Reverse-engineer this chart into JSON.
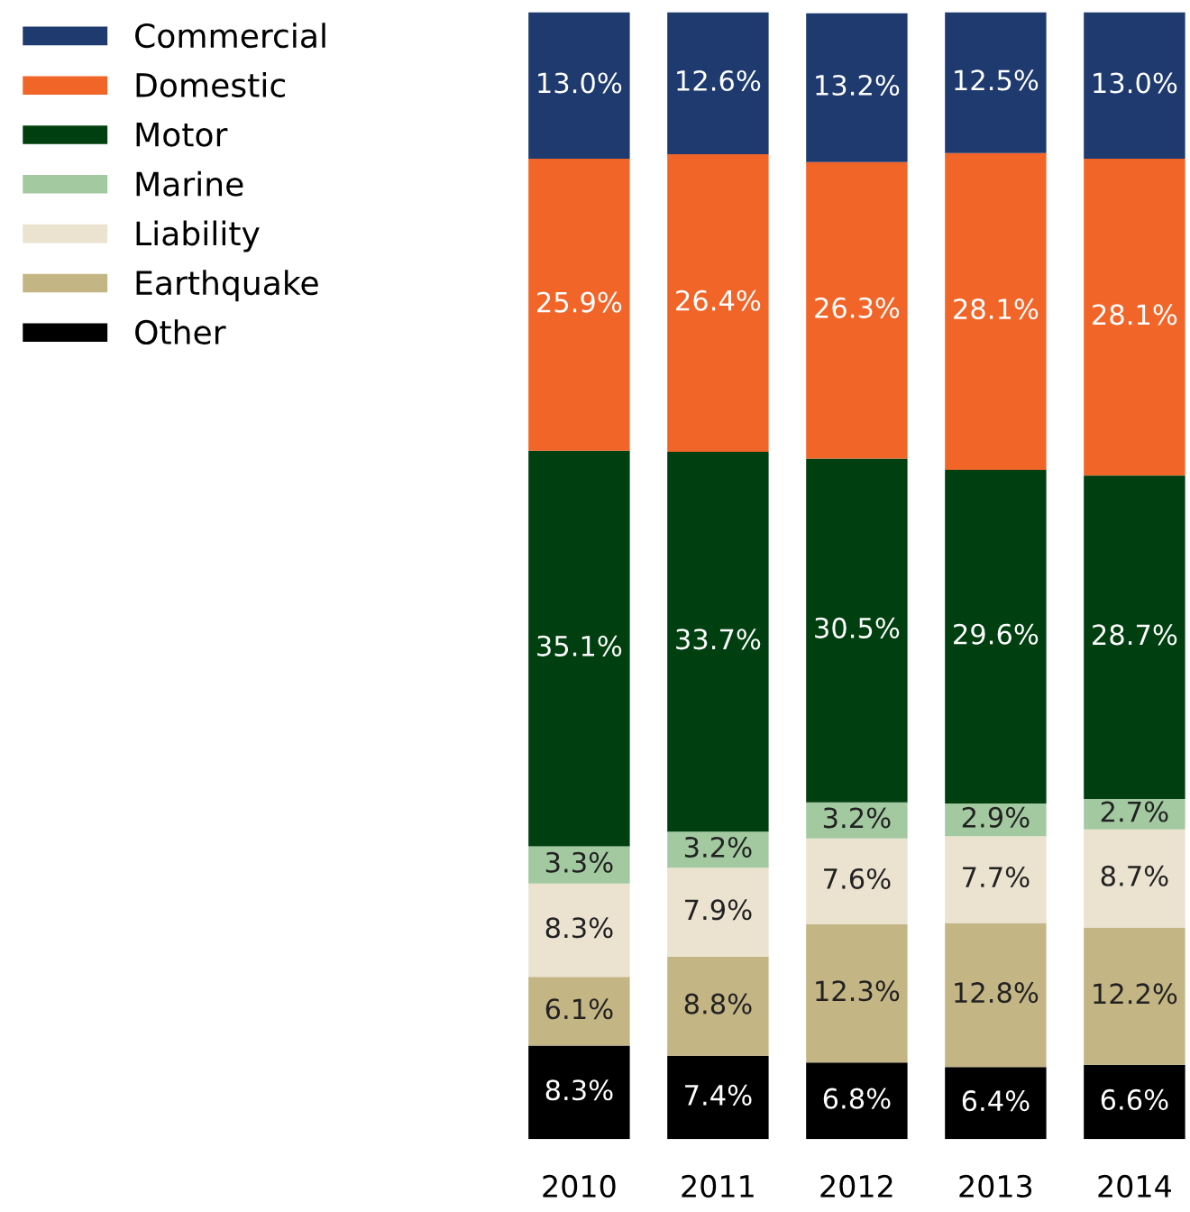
{
  "chart_data": {
    "type": "bar",
    "stacked": true,
    "legend": "left",
    "data_labels": true,
    "categories": [
      "2010",
      "2011",
      "2012",
      "2013",
      "2014"
    ],
    "series": [
      {
        "name": "Other",
        "color": "#000000",
        "values": [
          8.3,
          7.4,
          6.8,
          6.4,
          6.6
        ],
        "value_labels": [
          "8.3%",
          "7.4%",
          "6.8%",
          "6.4%",
          "6.6%"
        ]
      },
      {
        "name": "Earthquake",
        "color": "#c4b585",
        "values": [
          6.1,
          8.8,
          12.3,
          12.8,
          12.2
        ],
        "value_labels": [
          "6.1%",
          "8.8%",
          "12.3%",
          "12.8%",
          "12.2%"
        ]
      },
      {
        "name": "Liability",
        "color": "#ebe3d0",
        "values": [
          8.3,
          7.9,
          7.6,
          7.7,
          8.7
        ],
        "value_labels": [
          "8.3%",
          "7.9%",
          "7.6%",
          "7.7%",
          "8.7%"
        ]
      },
      {
        "name": "Marine",
        "color": "#a3c9a0",
        "values": [
          3.3,
          3.2,
          3.2,
          2.9,
          2.7
        ],
        "value_labels": [
          "3.3%",
          "3.2%",
          "3.2%",
          "2.9%",
          "2.7%"
        ]
      },
      {
        "name": "Motor",
        "color": "#004010",
        "values": [
          35.1,
          33.7,
          30.5,
          29.6,
          28.7
        ],
        "value_labels": [
          "35.1%",
          "33.7%",
          "30.5%",
          "29.6%",
          "28.7%"
        ]
      },
      {
        "name": "Domestic",
        "color": "#f26529",
        "values": [
          25.9,
          26.4,
          26.3,
          28.1,
          28.1
        ],
        "value_labels": [
          "25.9%",
          "26.4%",
          "26.3%",
          "28.1%",
          "28.1%"
        ]
      },
      {
        "name": "Commercial",
        "color": "#1f3a6e",
        "values": [
          13.0,
          12.6,
          13.2,
          12.5,
          13.0
        ],
        "value_labels": [
          "13.0%",
          "12.6%",
          "13.2%",
          "12.5%",
          "13.0%"
        ]
      }
    ]
  }
}
